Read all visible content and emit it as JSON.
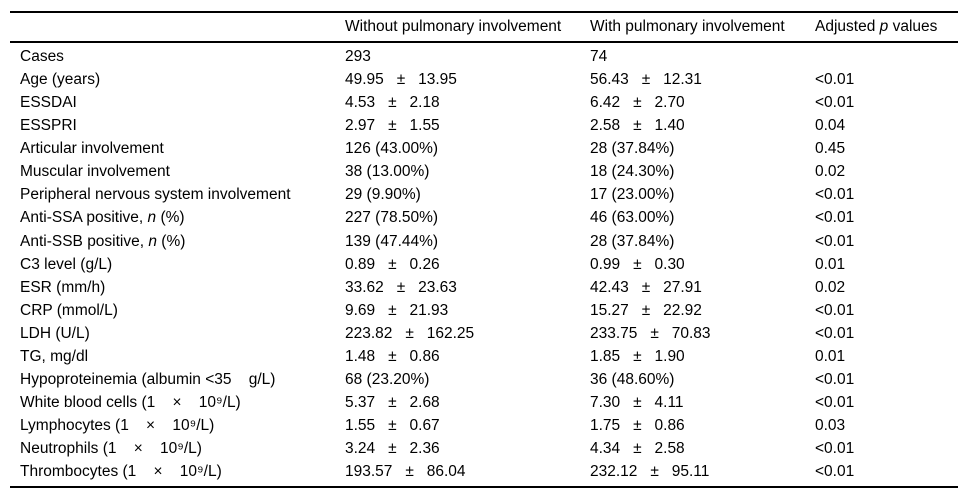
{
  "table": {
    "columns": [
      "",
      "Without pulmonary involvement",
      "With pulmonary involvement",
      "Adjusted *p* values"
    ],
    "rows": [
      {
        "label": "Cases",
        "without": "293",
        "with": "74",
        "p": ""
      },
      {
        "label": "Age (years)",
        "without": "49.95   ±   13.95",
        "with": "56.43   ±   12.31",
        "p": "<0.01"
      },
      {
        "label": "ESSDAI",
        "without": "4.53   ±   2.18",
        "with": "6.42   ±   2.70",
        "p": "<0.01"
      },
      {
        "label": "ESSPRI",
        "without": "2.97   ±   1.55",
        "with": "2.58   ±   1.40",
        "p": "0.04"
      },
      {
        "label": "Articular involvement",
        "without": "126 (43.00%)",
        "with": "28 (37.84%)",
        "p": "0.45"
      },
      {
        "label": "Muscular involvement",
        "without": "38 (13.00%)",
        "with": "18 (24.30%)",
        "p": "0.02"
      },
      {
        "label": "Peripheral nervous system involvement",
        "without": "29 (9.90%)",
        "with": "17 (23.00%)",
        "p": "<0.01"
      },
      {
        "label": "Anti-SSA positive, *n* (%)",
        "without": "227 (78.50%)",
        "with": "46 (63.00%)",
        "p": "<0.01"
      },
      {
        "label": "Anti-SSB positive, *n* (%)",
        "without": "139 (47.44%)",
        "with": "28 (37.84%)",
        "p": "<0.01"
      },
      {
        "label": "C3 level (g/L)",
        "without": "0.89   ±   0.26",
        "with": "0.99   ±   0.30",
        "p": "0.01"
      },
      {
        "label": "ESR (mm/h)",
        "without": "33.62   ±   23.63",
        "with": "42.43   ±   27.91",
        "p": "0.02"
      },
      {
        "label": "CRP (mmol/L)",
        "without": "9.69   ±   21.93",
        "with": "15.27   ±   22.92",
        "p": "<0.01"
      },
      {
        "label": "LDH (U/L)",
        "without": "223.82   ±   162.25",
        "with": "233.75   ±   70.83",
        "p": "<0.01"
      },
      {
        "label": "TG, mg/dl",
        "without": "1.48   ±   0.86",
        "with": "1.85   ±   1.90",
        "p": "0.01"
      },
      {
        "label": "Hypoproteinemia (albumin <35    g/L)",
        "without": "68 (23.20%)",
        "with": "36 (48.60%)",
        "p": "<0.01"
      },
      {
        "label": "White blood cells (1    ×    10⁹/L)",
        "without": "5.37   ±   2.68",
        "with": "7.30   ±   4.11",
        "p": "<0.01"
      },
      {
        "label": "Lymphocytes (1    ×    10⁹/L)",
        "without": "1.55   ±   0.67",
        "with": "1.75   ±   0.86",
        "p": "0.03"
      },
      {
        "label": "Neutrophils (1    ×    10⁹/L)",
        "without": "3.24   ±   2.36",
        "with": "4.34   ±   2.58",
        "p": "<0.01"
      },
      {
        "label": "Thrombocytes (1    ×    10⁹/L)",
        "without": "193.57   ±   86.04",
        "with": "232.12   ±   95.11",
        "p": "<0.01"
      }
    ]
  }
}
